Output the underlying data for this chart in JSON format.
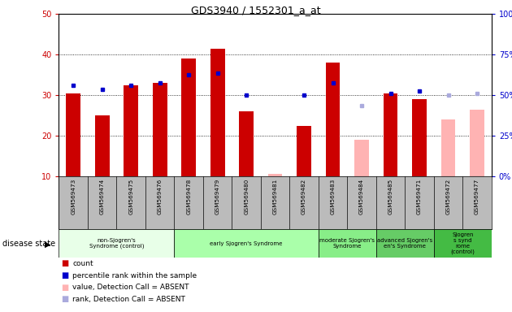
{
  "title": "GDS3940 / 1552301_a_at",
  "samples": [
    "GSM569473",
    "GSM569474",
    "GSM569475",
    "GSM569476",
    "GSM569478",
    "GSM569479",
    "GSM569480",
    "GSM569481",
    "GSM569482",
    "GSM569483",
    "GSM569484",
    "GSM569485",
    "GSM569471",
    "GSM569472",
    "GSM569477"
  ],
  "count_values": [
    30.5,
    25.0,
    32.5,
    33.0,
    39.0,
    41.5,
    26.0,
    null,
    22.5,
    38.0,
    null,
    30.5,
    29.0,
    null,
    null
  ],
  "count_absent": [
    null,
    null,
    null,
    null,
    null,
    null,
    null,
    10.5,
    null,
    null,
    19.0,
    null,
    null,
    24.0,
    26.5
  ],
  "rank_values": [
    32.5,
    31.5,
    32.5,
    33.0,
    35.0,
    35.5,
    30.0,
    null,
    30.0,
    33.0,
    null,
    30.5,
    31.0,
    null,
    null
  ],
  "rank_absent": [
    null,
    null,
    null,
    null,
    null,
    null,
    null,
    null,
    null,
    null,
    27.5,
    null,
    null,
    30.0,
    30.5
  ],
  "disease_groups": [
    {
      "label": "non-Sjogren's\nSyndrome (control)",
      "start": 0,
      "end": 4,
      "color": "#e8ffe8"
    },
    {
      "label": "early Sjogren's Syndrome",
      "start": 4,
      "end": 9,
      "color": "#aaffaa"
    },
    {
      "label": "moderate Sjogren's\nSyndrome",
      "start": 9,
      "end": 11,
      "color": "#88ee88"
    },
    {
      "label": "advanced Sjogren's Syndrome",
      "start": 11,
      "end": 13,
      "color": "#66cc66"
    },
    {
      "label": "Sjogren\ns synd\nrome\n(control)",
      "start": 13,
      "end": 15,
      "color": "#44bb44"
    }
  ],
  "ylim_left": [
    10,
    50
  ],
  "ylim_right": [
    0,
    100
  ],
  "bar_color_red": "#cc0000",
  "bar_color_pink": "#ffb3b3",
  "dot_color_blue": "#0000cc",
  "dot_color_lightblue": "#aaaadd",
  "bar_width": 0.5,
  "group_bg_color": "#bbbbbb",
  "tick_label_color_left": "#cc0000",
  "tick_label_color_right": "#0000cc"
}
